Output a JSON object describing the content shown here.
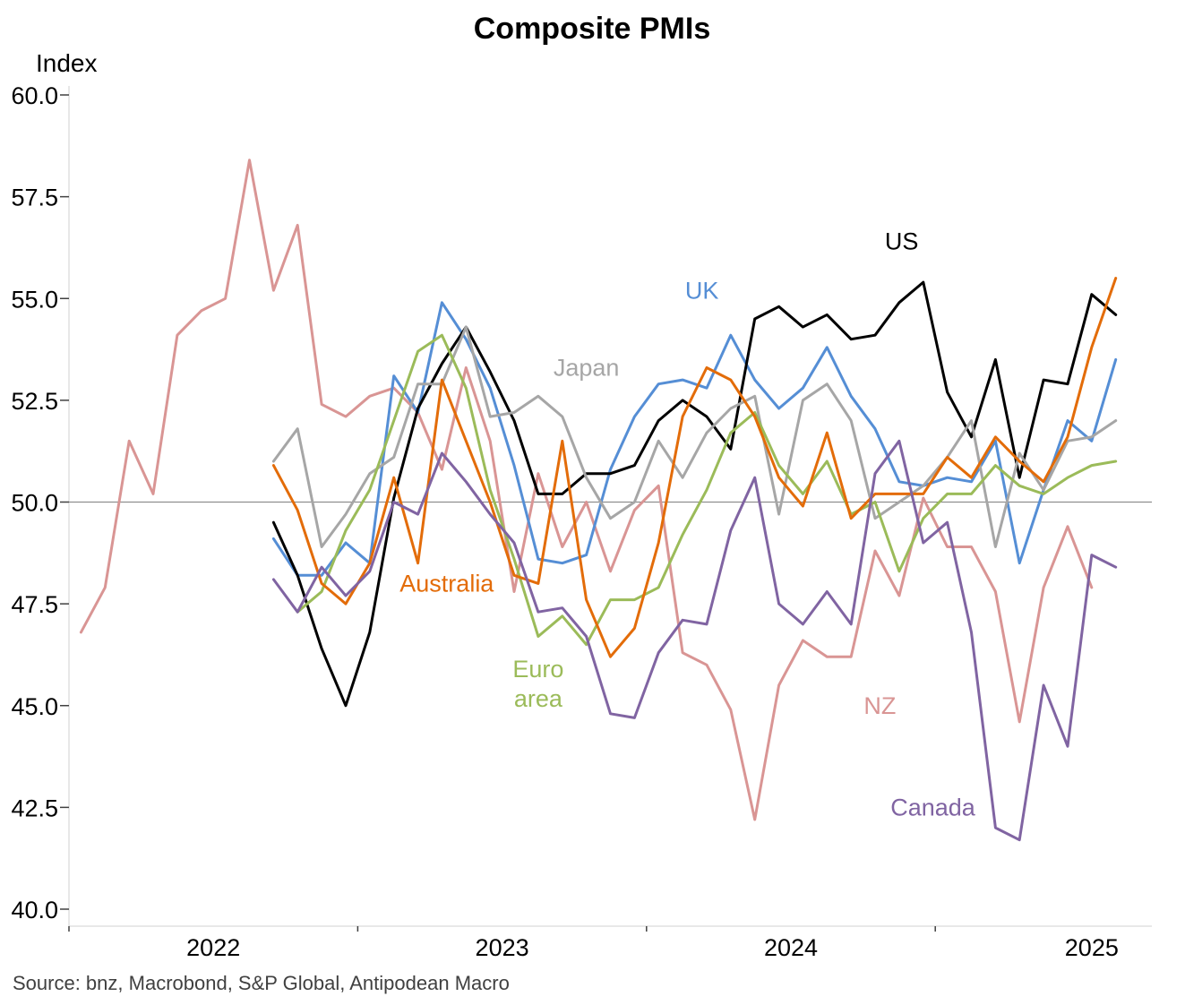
{
  "chart_data": {
    "type": "line",
    "title": "Composite PMIs",
    "ylabel": "Index",
    "xlabel": "",
    "ylim": [
      40,
      60
    ],
    "yticks": [
      40.0,
      42.5,
      45.0,
      47.5,
      50.0,
      52.5,
      55.0,
      57.5,
      60.0
    ],
    "ytick_labels": [
      "40.0",
      "42.5",
      "45.0",
      "47.5",
      "50.0",
      "52.5",
      "55.0",
      "57.5",
      "60.0"
    ],
    "xlim": [
      0,
      45
    ],
    "xtick_positions": [
      12,
      24,
      36
    ],
    "xaxis_labels": [
      {
        "text": "2022",
        "x": 6
      },
      {
        "text": "2023",
        "x": 18
      },
      {
        "text": "2024",
        "x": 30
      },
      {
        "text": "2025",
        "x": 42.5
      }
    ],
    "reference_line": 50,
    "source": "Source: bnz, Macrobond, S&P Global, Antipodean Macro",
    "series": [
      {
        "name": "NZ",
        "color": "#d99594",
        "label_lines": [
          "NZ"
        ],
        "label_at": [
          33.7,
          44.8
        ],
        "start": 0.5,
        "values": [
          46.8,
          47.9,
          51.5,
          50.2,
          54.1,
          54.7,
          55.0,
          58.4,
          55.2,
          56.8,
          52.4,
          52.1,
          52.6,
          52.8,
          52.2,
          50.8,
          53.3,
          51.5,
          47.8,
          50.7,
          48.9,
          50.0,
          48.3,
          49.8,
          50.4,
          46.3,
          46.0,
          44.9,
          42.2,
          45.5,
          46.6,
          46.2,
          46.2,
          48.8,
          47.7,
          50.1,
          48.9,
          48.9,
          47.8,
          44.6,
          47.9,
          49.4,
          47.9
        ]
      },
      {
        "name": "UK",
        "color": "#558ed5",
        "label_lines": [
          "UK"
        ],
        "label_at": [
          26.3,
          55.0
        ],
        "start": 8.5,
        "values": [
          49.1,
          48.2,
          48.2,
          49.0,
          48.5,
          53.1,
          52.2,
          54.9,
          54.0,
          52.8,
          50.9,
          48.6,
          48.5,
          48.7,
          50.8,
          52.1,
          52.9,
          53.0,
          52.8,
          54.1,
          53.0,
          52.3,
          52.8,
          53.8,
          52.6,
          51.8,
          50.5,
          50.4,
          50.6,
          50.5,
          51.5,
          48.5,
          50.3,
          52.0,
          51.5,
          53.5
        ]
      },
      {
        "name": "US",
        "color": "#000000",
        "label_lines": [
          "US"
        ],
        "label_at": [
          34.6,
          56.2
        ],
        "start": 8.5,
        "values": [
          49.5,
          48.2,
          46.4,
          45.0,
          46.8,
          50.1,
          52.3,
          53.4,
          54.3,
          53.2,
          52.0,
          50.2,
          50.2,
          50.7,
          50.7,
          50.9,
          52.0,
          52.5,
          52.1,
          51.3,
          54.5,
          54.8,
          54.3,
          54.6,
          54.0,
          54.1,
          54.9,
          55.4,
          52.7,
          51.6,
          53.5,
          50.6,
          53.0,
          52.9,
          55.1,
          54.6
        ]
      },
      {
        "name": "Japan",
        "color": "#a6a6a6",
        "label_lines": [
          "Japan"
        ],
        "label_at": [
          21.5,
          53.1
        ],
        "start": 8.5,
        "values": [
          51.0,
          51.8,
          48.9,
          49.7,
          50.7,
          51.1,
          52.9,
          52.9,
          54.3,
          52.1,
          52.2,
          52.6,
          52.1,
          50.6,
          49.6,
          50.0,
          51.5,
          50.6,
          51.7,
          52.3,
          52.6,
          49.7,
          52.5,
          52.9,
          52.0,
          49.6,
          50.0,
          50.4,
          51.1,
          52.0,
          48.9,
          51.2,
          50.3,
          51.5,
          51.6,
          52.0
        ]
      },
      {
        "name": "Euro area",
        "color": "#9bbb59",
        "label_lines": [
          "Euro",
          "area"
        ],
        "label_at": [
          19.5,
          45.7
        ],
        "start": 9.5,
        "values": [
          47.3,
          47.8,
          49.3,
          50.3,
          52.0,
          53.7,
          54.1,
          52.8,
          50.3,
          48.6,
          46.7,
          47.2,
          46.5,
          47.6,
          47.6,
          47.9,
          49.2,
          50.3,
          51.7,
          52.2,
          50.9,
          50.2,
          51.0,
          49.7,
          50.0,
          48.3,
          49.6,
          50.2,
          50.2,
          50.9,
          50.4,
          50.2,
          50.6,
          50.9,
          51.0
        ]
      },
      {
        "name": "Australia",
        "color": "#e36c09",
        "label_lines": [
          "Australia"
        ],
        "label_at": [
          15.7,
          47.8
        ],
        "start": 8.5,
        "values": [
          50.9,
          49.8,
          48.0,
          47.5,
          48.5,
          50.6,
          48.5,
          53.0,
          51.5,
          50.0,
          48.2,
          48.0,
          51.5,
          47.6,
          46.2,
          46.9,
          49.0,
          52.1,
          53.3,
          53.0,
          52.1,
          50.6,
          49.9,
          51.7,
          49.6,
          50.2,
          50.2,
          50.2,
          51.1,
          50.6,
          51.6,
          51.0,
          50.5,
          51.6,
          53.8,
          55.5
        ]
      },
      {
        "name": "Canada",
        "color": "#8064a2",
        "label_lines": [
          "Canada"
        ],
        "label_at": [
          35.9,
          42.3
        ],
        "start": 8.5,
        "values": [
          48.1,
          47.3,
          48.4,
          47.7,
          48.3,
          50.0,
          49.7,
          51.2,
          50.5,
          49.7,
          49.0,
          47.3,
          47.4,
          46.7,
          44.8,
          44.7,
          46.3,
          47.1,
          47.0,
          49.3,
          50.6,
          47.5,
          47.0,
          47.8,
          47.0,
          50.7,
          51.5,
          49.0,
          49.5,
          46.8,
          42.0,
          41.7,
          45.5,
          44.0,
          48.7,
          48.4
        ]
      }
    ]
  }
}
